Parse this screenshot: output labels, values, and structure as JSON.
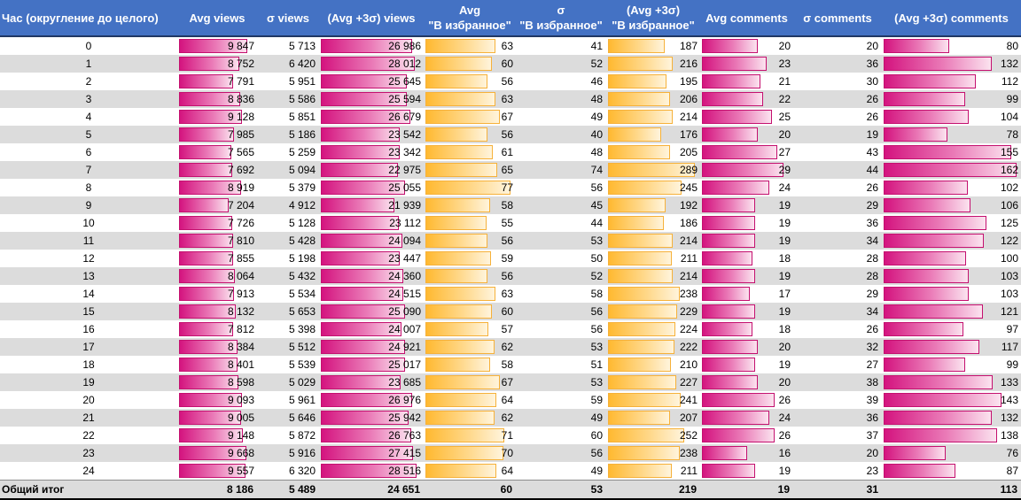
{
  "headers": {
    "hour": "Час (округление до целого)",
    "avg_views": "Avg views",
    "sd_views": "σ views",
    "avg3_views": "(Avg +3σ) views",
    "avg_fav": "Avg\n\"В избранное\"",
    "sd_fav": "σ\n\"В избранное\"",
    "avg3_fav": "(Avg +3σ)\n\"В избранное\"",
    "avg_comments": "Avg comments",
    "sd_comments": "σ  comments",
    "avg3_comments": "(Avg +3σ) comments"
  },
  "colors": {
    "header_bg": "#4472c4",
    "bar_pink": "#d4147f",
    "bar_gold": "#ffb931",
    "row_alt": "#dcdcdc"
  },
  "bar_scales": {
    "avg_views": 11000,
    "avg3_views": 30000,
    "avg_fav": 80,
    "avg3_fav": 300,
    "avg_comments": 32,
    "avg3_comments": 165
  },
  "rows": [
    {
      "hour": "0",
      "avg_views": "9 847",
      "sd_views": "5 713",
      "avg3_views": "26 986",
      "avg_fav": "63",
      "sd_fav": "41",
      "avg3_fav": "187",
      "avg_comments": "20",
      "sd_comments": "20",
      "avg3_comments": "80"
    },
    {
      "hour": "1",
      "avg_views": "8 752",
      "sd_views": "6 420",
      "avg3_views": "28 012",
      "avg_fav": "60",
      "sd_fav": "52",
      "avg3_fav": "216",
      "avg_comments": "23",
      "sd_comments": "36",
      "avg3_comments": "132"
    },
    {
      "hour": "2",
      "avg_views": "7 791",
      "sd_views": "5 951",
      "avg3_views": "25 645",
      "avg_fav": "56",
      "sd_fav": "46",
      "avg3_fav": "195",
      "avg_comments": "21",
      "sd_comments": "30",
      "avg3_comments": "112"
    },
    {
      "hour": "3",
      "avg_views": "8 836",
      "sd_views": "5 586",
      "avg3_views": "25 594",
      "avg_fav": "63",
      "sd_fav": "48",
      "avg3_fav": "206",
      "avg_comments": "22",
      "sd_comments": "26",
      "avg3_comments": "99"
    },
    {
      "hour": "4",
      "avg_views": "9 128",
      "sd_views": "5 851",
      "avg3_views": "26 679",
      "avg_fav": "67",
      "sd_fav": "49",
      "avg3_fav": "214",
      "avg_comments": "25",
      "sd_comments": "26",
      "avg3_comments": "104"
    },
    {
      "hour": "5",
      "avg_views": "7 985",
      "sd_views": "5 186",
      "avg3_views": "23 542",
      "avg_fav": "56",
      "sd_fav": "40",
      "avg3_fav": "176",
      "avg_comments": "20",
      "sd_comments": "19",
      "avg3_comments": "78"
    },
    {
      "hour": "6",
      "avg_views": "7 565",
      "sd_views": "5 259",
      "avg3_views": "23 342",
      "avg_fav": "61",
      "sd_fav": "48",
      "avg3_fav": "205",
      "avg_comments": "27",
      "sd_comments": "43",
      "avg3_comments": "155"
    },
    {
      "hour": "7",
      "avg_views": "7 692",
      "sd_views": "5 094",
      "avg3_views": "22 975",
      "avg_fav": "65",
      "sd_fav": "74",
      "avg3_fav": "289",
      "avg_comments": "29",
      "sd_comments": "44",
      "avg3_comments": "162"
    },
    {
      "hour": "8",
      "avg_views": "8 919",
      "sd_views": "5 379",
      "avg3_views": "25 055",
      "avg_fav": "77",
      "sd_fav": "56",
      "avg3_fav": "245",
      "avg_comments": "24",
      "sd_comments": "26",
      "avg3_comments": "102"
    },
    {
      "hour": "9",
      "avg_views": "7 204",
      "sd_views": "4 912",
      "avg3_views": "21 939",
      "avg_fav": "58",
      "sd_fav": "45",
      "avg3_fav": "192",
      "avg_comments": "19",
      "sd_comments": "29",
      "avg3_comments": "106"
    },
    {
      "hour": "10",
      "avg_views": "7 726",
      "sd_views": "5 128",
      "avg3_views": "23 112",
      "avg_fav": "55",
      "sd_fav": "44",
      "avg3_fav": "186",
      "avg_comments": "19",
      "sd_comments": "36",
      "avg3_comments": "125"
    },
    {
      "hour": "11",
      "avg_views": "7 810",
      "sd_views": "5 428",
      "avg3_views": "24 094",
      "avg_fav": "56",
      "sd_fav": "53",
      "avg3_fav": "214",
      "avg_comments": "19",
      "sd_comments": "34",
      "avg3_comments": "122"
    },
    {
      "hour": "12",
      "avg_views": "7 855",
      "sd_views": "5 198",
      "avg3_views": "23 447",
      "avg_fav": "59",
      "sd_fav": "50",
      "avg3_fav": "211",
      "avg_comments": "18",
      "sd_comments": "28",
      "avg3_comments": "100"
    },
    {
      "hour": "13",
      "avg_views": "8 064",
      "sd_views": "5 432",
      "avg3_views": "24 360",
      "avg_fav": "56",
      "sd_fav": "52",
      "avg3_fav": "214",
      "avg_comments": "19",
      "sd_comments": "28",
      "avg3_comments": "103"
    },
    {
      "hour": "14",
      "avg_views": "7 913",
      "sd_views": "5 534",
      "avg3_views": "24 515",
      "avg_fav": "63",
      "sd_fav": "58",
      "avg3_fav": "238",
      "avg_comments": "17",
      "sd_comments": "29",
      "avg3_comments": "103"
    },
    {
      "hour": "15",
      "avg_views": "8 132",
      "sd_views": "5 653",
      "avg3_views": "25 090",
      "avg_fav": "60",
      "sd_fav": "56",
      "avg3_fav": "229",
      "avg_comments": "19",
      "sd_comments": "34",
      "avg3_comments": "121"
    },
    {
      "hour": "16",
      "avg_views": "7 812",
      "sd_views": "5 398",
      "avg3_views": "24 007",
      "avg_fav": "57",
      "sd_fav": "56",
      "avg3_fav": "224",
      "avg_comments": "18",
      "sd_comments": "26",
      "avg3_comments": "97"
    },
    {
      "hour": "17",
      "avg_views": "8 384",
      "sd_views": "5 512",
      "avg3_views": "24 921",
      "avg_fav": "62",
      "sd_fav": "53",
      "avg3_fav": "222",
      "avg_comments": "20",
      "sd_comments": "32",
      "avg3_comments": "117"
    },
    {
      "hour": "18",
      "avg_views": "8 401",
      "sd_views": "5 539",
      "avg3_views": "25 017",
      "avg_fav": "58",
      "sd_fav": "51",
      "avg3_fav": "210",
      "avg_comments": "19",
      "sd_comments": "27",
      "avg3_comments": "99"
    },
    {
      "hour": "19",
      "avg_views": "8 598",
      "sd_views": "5 029",
      "avg3_views": "23 685",
      "avg_fav": "67",
      "sd_fav": "53",
      "avg3_fav": "227",
      "avg_comments": "20",
      "sd_comments": "38",
      "avg3_comments": "133"
    },
    {
      "hour": "20",
      "avg_views": "9 093",
      "sd_views": "5 961",
      "avg3_views": "26 976",
      "avg_fav": "64",
      "sd_fav": "59",
      "avg3_fav": "241",
      "avg_comments": "26",
      "sd_comments": "39",
      "avg3_comments": "143"
    },
    {
      "hour": "21",
      "avg_views": "9 005",
      "sd_views": "5 646",
      "avg3_views": "25 942",
      "avg_fav": "62",
      "sd_fav": "49",
      "avg3_fav": "207",
      "avg_comments": "24",
      "sd_comments": "36",
      "avg3_comments": "132"
    },
    {
      "hour": "22",
      "avg_views": "9 148",
      "sd_views": "5 872",
      "avg3_views": "26 763",
      "avg_fav": "71",
      "sd_fav": "60",
      "avg3_fav": "252",
      "avg_comments": "26",
      "sd_comments": "37",
      "avg3_comments": "138"
    },
    {
      "hour": "23",
      "avg_views": "9 668",
      "sd_views": "5 916",
      "avg3_views": "27 415",
      "avg_fav": "70",
      "sd_fav": "56",
      "avg3_fav": "238",
      "avg_comments": "16",
      "sd_comments": "20",
      "avg3_comments": "76"
    },
    {
      "hour": "24",
      "avg_views": "9 557",
      "sd_views": "6 320",
      "avg3_views": "28 516",
      "avg_fav": "64",
      "sd_fav": "49",
      "avg3_fav": "211",
      "avg_comments": "19",
      "sd_comments": "23",
      "avg3_comments": "87"
    }
  ],
  "total": {
    "label": "Общий итог",
    "avg_views": "8 186",
    "sd_views": "5 489",
    "avg3_views": "24 651",
    "avg_fav": "60",
    "sd_fav": "53",
    "avg3_fav": "219",
    "avg_comments": "19",
    "sd_comments": "31",
    "avg3_comments": "113"
  }
}
